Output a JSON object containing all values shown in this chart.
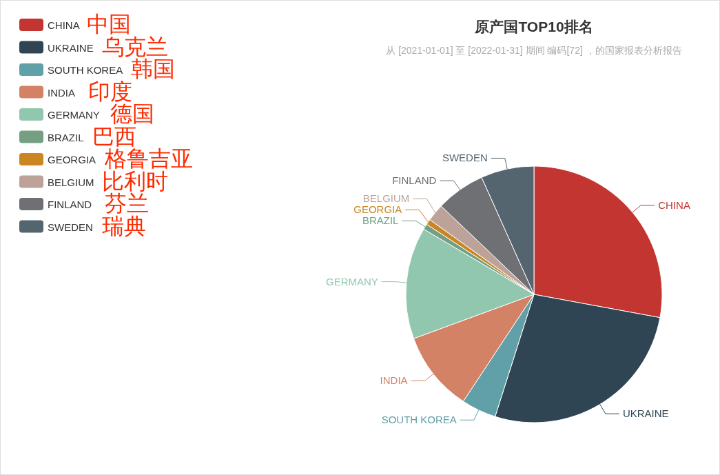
{
  "chart_data": {
    "type": "pie",
    "title": "原产国TOP10排名",
    "subtitle": "从 [2021-01-01] 至 [2022-01-31] 期间 编码[72] ，的国家报表分析报告",
    "categories": [
      "CHINA",
      "UKRAINE",
      "SOUTH KOREA",
      "INDIA",
      "GERMANY",
      "BRAZIL",
      "GEORGIA",
      "BELGIUM",
      "FINLAND",
      "SWEDEN"
    ],
    "values": [
      27.9,
      27.0,
      4.4,
      10.1,
      14.1,
      0.7,
      0.7,
      2.2,
      6.2,
      6.7
    ],
    "colors": [
      "#c23531",
      "#2f4554",
      "#61a0a8",
      "#d48265",
      "#91c7ae",
      "#749f83",
      "#ca8622",
      "#bda29a",
      "#6e7074",
      "#546570"
    ],
    "legend": "top left",
    "annotations": [
      "中国",
      "乌克兰",
      "韩国",
      "印度",
      "德国",
      "巴西",
      "格鲁吉亚",
      "比利时",
      "芬兰",
      "瑞典"
    ]
  }
}
